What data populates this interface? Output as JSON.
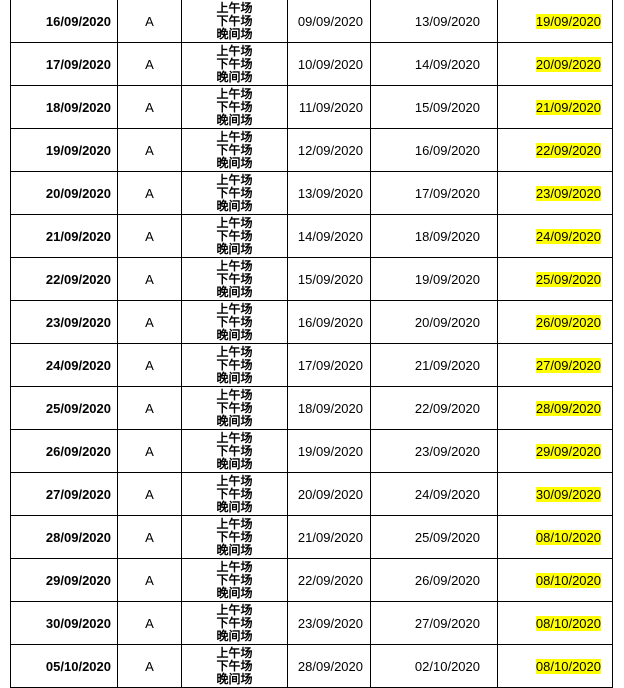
{
  "sessions": [
    "上午场",
    "下午场",
    "晚间场"
  ],
  "highlight_color": "#ffff00",
  "rows": [
    {
      "date": "16/09/2020",
      "grade": "A",
      "start": "09/09/2020",
      "end": "13/09/2020",
      "result": "19/09/2020"
    },
    {
      "date": "17/09/2020",
      "grade": "A",
      "start": "10/09/2020",
      "end": "14/09/2020",
      "result": "20/09/2020"
    },
    {
      "date": "18/09/2020",
      "grade": "A",
      "start": "11/09/2020",
      "end": "15/09/2020",
      "result": "21/09/2020"
    },
    {
      "date": "19/09/2020",
      "grade": "A",
      "start": "12/09/2020",
      "end": "16/09/2020",
      "result": "22/09/2020"
    },
    {
      "date": "20/09/2020",
      "grade": "A",
      "start": "13/09/2020",
      "end": "17/09/2020",
      "result": "23/09/2020"
    },
    {
      "date": "21/09/2020",
      "grade": "A",
      "start": "14/09/2020",
      "end": "18/09/2020",
      "result": "24/09/2020"
    },
    {
      "date": "22/09/2020",
      "grade": "A",
      "start": "15/09/2020",
      "end": "19/09/2020",
      "result": "25/09/2020"
    },
    {
      "date": "23/09/2020",
      "grade": "A",
      "start": "16/09/2020",
      "end": "20/09/2020",
      "result": "26/09/2020"
    },
    {
      "date": "24/09/2020",
      "grade": "A",
      "start": "17/09/2020",
      "end": "21/09/2020",
      "result": "27/09/2020"
    },
    {
      "date": "25/09/2020",
      "grade": "A",
      "start": "18/09/2020",
      "end": "22/09/2020",
      "result": "28/09/2020"
    },
    {
      "date": "26/09/2020",
      "grade": "A",
      "start": "19/09/2020",
      "end": "23/09/2020",
      "result": "29/09/2020"
    },
    {
      "date": "27/09/2020",
      "grade": "A",
      "start": "20/09/2020",
      "end": "24/09/2020",
      "result": "30/09/2020"
    },
    {
      "date": "28/09/2020",
      "grade": "A",
      "start": "21/09/2020",
      "end": "25/09/2020",
      "result": "08/10/2020"
    },
    {
      "date": "29/09/2020",
      "grade": "A",
      "start": "22/09/2020",
      "end": "26/09/2020",
      "result": "08/10/2020"
    },
    {
      "date": "30/09/2020",
      "grade": "A",
      "start": "23/09/2020",
      "end": "27/09/2020",
      "result": "08/10/2020"
    },
    {
      "date": "05/10/2020",
      "grade": "A",
      "start": "28/09/2020",
      "end": "02/10/2020",
      "result": "08/10/2020"
    }
  ]
}
